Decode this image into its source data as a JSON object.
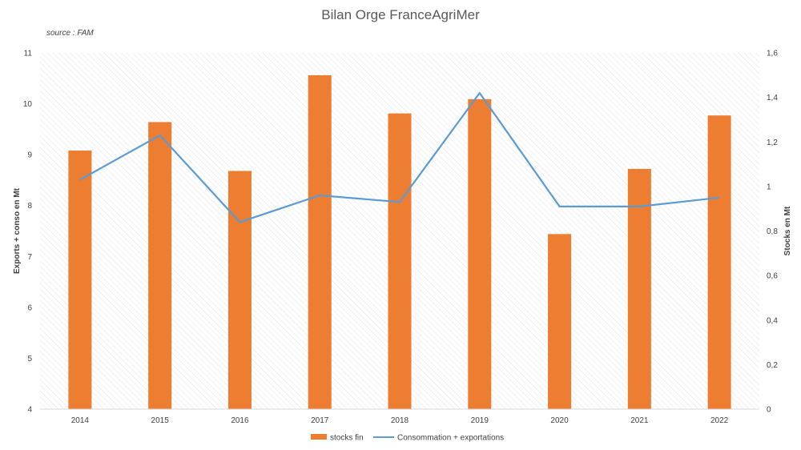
{
  "chart_data": {
    "type": "bar",
    "title": "Bilan Orge FranceAgriMer",
    "subtitle": "source : FAM",
    "categories": [
      "2014",
      "2015",
      "2016",
      "2017",
      "2018",
      "2019",
      "2020",
      "2021",
      "2022"
    ],
    "series": [
      {
        "name": "stocks fin",
        "type": "bar",
        "axis": "left",
        "color": "#ED7D31",
        "values": [
          9.08,
          9.64,
          8.68,
          10.56,
          9.81,
          10.09,
          7.44,
          8.72,
          9.77
        ]
      },
      {
        "name": "Consommation + exportations",
        "type": "line",
        "axis": "right",
        "color": "#5B9BD5",
        "values": [
          1.03,
          1.23,
          0.84,
          0.96,
          0.93,
          1.42,
          0.91,
          0.91,
          0.95
        ]
      }
    ],
    "ylabel": "Exports + conso en Mt",
    "ylim": [
      4,
      11
    ],
    "yticks": [
      "4",
      "5",
      "6",
      "7",
      "8",
      "9",
      "10",
      "11"
    ],
    "y2label": "Stocks en Mt",
    "y2lim": [
      0,
      1.6
    ],
    "y2ticks": [
      "0",
      "0,2",
      "0,4",
      "0,6",
      "0,8",
      "1",
      "1,2",
      "1,4",
      "1,6"
    ],
    "grid": false,
    "legend_position": "bottom"
  }
}
